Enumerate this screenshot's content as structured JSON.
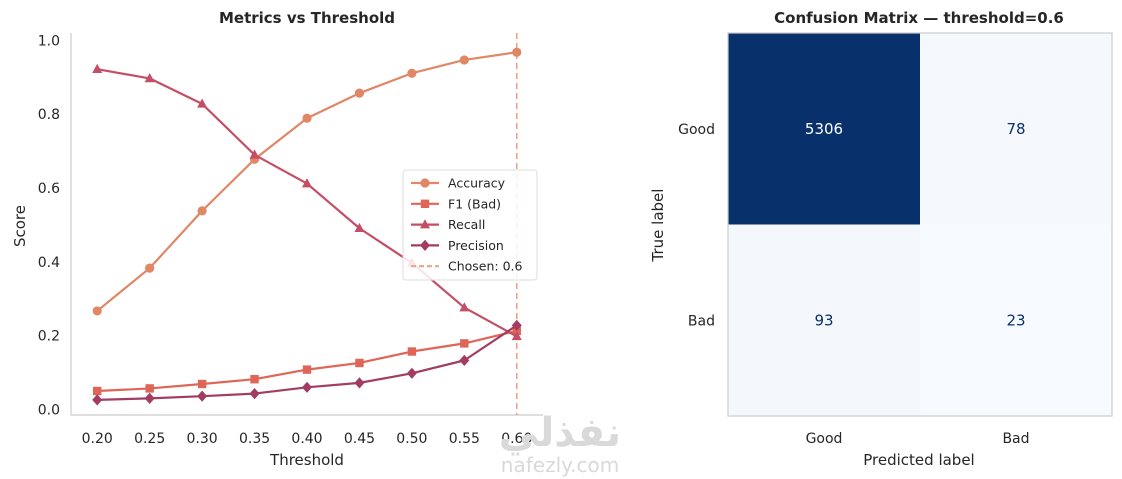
{
  "chart_data": [
    {
      "type": "line",
      "title": "Metrics vs Threshold",
      "xlabel": "Threshold",
      "ylabel": "Score",
      "x": [
        0.2,
        0.25,
        0.3,
        0.35,
        0.4,
        0.45,
        0.5,
        0.55,
        0.6
      ],
      "x_tick_labels": [
        "0.20",
        "0.25",
        "0.30",
        "0.35",
        "0.40",
        "0.45",
        "0.50",
        "0.55",
        "0.60"
      ],
      "y_ticks": [
        0.0,
        0.2,
        0.4,
        0.6,
        0.8,
        1.0
      ],
      "y_tick_labels": [
        "0.0",
        "0.2",
        "0.4",
        "0.6",
        "0.8",
        "1.0"
      ],
      "xlim": [
        0.175,
        0.625
      ],
      "ylim": [
        -0.015,
        1.02
      ],
      "grid": false,
      "legend_position": "center-right",
      "series": [
        {
          "name": "Accuracy",
          "color": "#e08766",
          "marker": "circle",
          "values": [
            0.267,
            0.383,
            0.538,
            0.678,
            0.789,
            0.857,
            0.911,
            0.947,
            0.968
          ]
        },
        {
          "name": "F1 (Bad)",
          "color": "#df6558",
          "marker": "square",
          "values": [
            0.05,
            0.057,
            0.069,
            0.082,
            0.108,
            0.126,
            0.157,
            0.179,
            0.213
          ]
        },
        {
          "name": "Recall",
          "color": "#c44e66",
          "marker": "triangle",
          "values": [
            0.922,
            0.897,
            0.828,
            0.69,
            0.612,
            0.491,
            0.397,
            0.276,
            0.198
          ]
        },
        {
          "name": "Precision",
          "color": "#a33c63",
          "marker": "diamond",
          "values": [
            0.026,
            0.03,
            0.036,
            0.043,
            0.06,
            0.072,
            0.098,
            0.133,
            0.228
          ]
        }
      ],
      "reference_line": {
        "label": "Chosen: 0.6",
        "x": 0.6,
        "color": "#eba48b"
      }
    },
    {
      "type": "heatmap",
      "title": "Confusion Matrix — threshold=0.6",
      "xlabel": "Predicted label",
      "ylabel": "True label",
      "x_labels": [
        "Good",
        "Bad"
      ],
      "y_labels": [
        "Good",
        "Bad"
      ],
      "values": [
        [
          5306,
          78
        ],
        [
          93,
          23
        ]
      ],
      "value_labels": [
        [
          "5306",
          "78"
        ],
        [
          "93",
          "23"
        ]
      ],
      "colormap": "Blues"
    }
  ],
  "watermark": {
    "arabic": "نفذلي",
    "latin": "nafezly.com"
  }
}
